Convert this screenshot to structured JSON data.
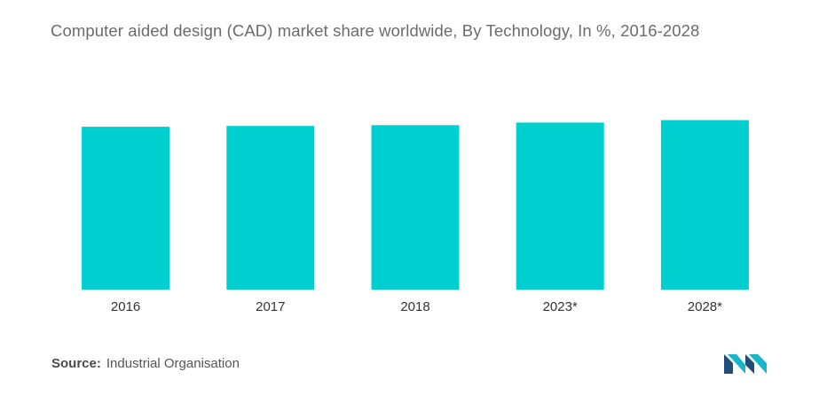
{
  "title": "Computer aided design (CAD) market share worldwide, By Technology, In %, 2016-2028",
  "source": {
    "label": "Source:",
    "text": "Industrial Organisation"
  },
  "colors": {
    "bar": "#00cfd0",
    "logo_dark": "#1f4e79",
    "logo_light": "#19b6c9"
  },
  "logo": {
    "icon": "mordor-intelligence-logo"
  },
  "chart_data": {
    "type": "bar",
    "categories": [
      "2016",
      "2017",
      "2018",
      "2023*",
      "2028*"
    ],
    "values": [
      97.5,
      98.0,
      98.5,
      100.0,
      101.5
    ],
    "ylim": [
      0,
      105
    ],
    "grid": false,
    "legend": "none"
  }
}
